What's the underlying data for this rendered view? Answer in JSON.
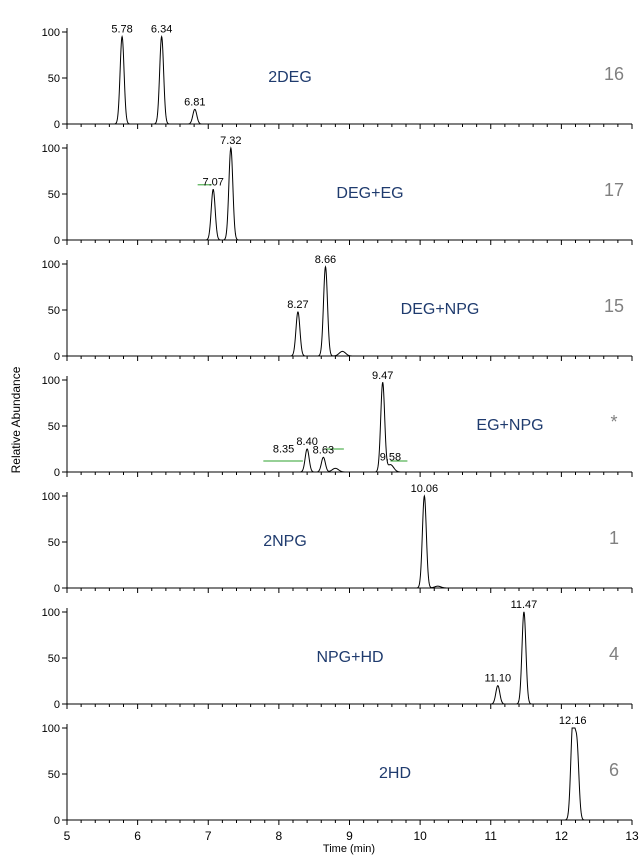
{
  "chart_data": {
    "type": "line",
    "xlabel": "Time (min)",
    "ylabel": "Relative Abundance",
    "xlim": [
      5,
      13
    ],
    "ylim": [
      0,
      100
    ],
    "x_ticks": [
      "5",
      "6",
      "7",
      "8",
      "9",
      "10",
      "11",
      "12",
      "13"
    ],
    "y_ticks": [
      "0",
      "50",
      "100"
    ],
    "grid": false,
    "colors": {
      "trace": "#000000",
      "compound_label": "#1f3b6e",
      "sample_number": "#808080",
      "baseline_marker": "#2ca02c"
    },
    "panels": [
      {
        "compound": "2DEG",
        "number": "16",
        "peaks": [
          {
            "rt": 5.78,
            "height": 95,
            "label": "5.78"
          },
          {
            "rt": 6.34,
            "height": 95,
            "label": "6.34"
          },
          {
            "rt": 6.81,
            "height": 16,
            "label": "6.81"
          }
        ],
        "markers": []
      },
      {
        "compound": "DEG+EG",
        "number": "17",
        "peaks": [
          {
            "rt": 7.07,
            "height": 55,
            "label": "7.07"
          },
          {
            "rt": 7.32,
            "height": 100,
            "label": "7.32"
          }
        ],
        "markers": [
          {
            "x1": 6.85,
            "x2": 7.05,
            "y": 60
          }
        ]
      },
      {
        "compound": "DEG+NPG",
        "number": "15",
        "peaks": [
          {
            "rt": 8.27,
            "height": 48,
            "label": "8.27"
          },
          {
            "rt": 8.66,
            "height": 97,
            "label": "8.66"
          },
          {
            "rt": 8.9,
            "height": 5,
            "label": ""
          }
        ],
        "markers": []
      },
      {
        "compound": "EG+NPG",
        "number": "*",
        "peaks": [
          {
            "rt": 8.4,
            "height": 25,
            "label": "8.40"
          },
          {
            "rt": 8.63,
            "height": 16,
            "label": "8.63"
          },
          {
            "rt": 8.8,
            "height": 4,
            "label": ""
          },
          {
            "rt": 9.47,
            "height": 97,
            "label": "9.47"
          },
          {
            "rt": 9.58,
            "height": 8,
            "label": "9.58"
          }
        ],
        "markers": [
          {
            "x1": 7.78,
            "x2": 8.34,
            "y": 12
          },
          {
            "x1": 8.64,
            "x2": 8.92,
            "y": 25
          },
          {
            "x1": 9.58,
            "x2": 9.82,
            "y": 12
          }
        ],
        "extra_labels": [
          {
            "rt": 8.35,
            "y": 18,
            "label": "8.35"
          }
        ]
      },
      {
        "compound": "2NPG",
        "number": "1",
        "peaks": [
          {
            "rt": 10.06,
            "height": 100,
            "label": "10.06"
          },
          {
            "rt": 10.25,
            "height": 2,
            "label": ""
          }
        ],
        "markers": []
      },
      {
        "compound": "NPG+HD",
        "number": "4",
        "peaks": [
          {
            "rt": 11.1,
            "height": 20,
            "label": "11.10"
          },
          {
            "rt": 11.47,
            "height": 100,
            "label": "11.47"
          }
        ],
        "markers": []
      },
      {
        "compound": "2HD",
        "number": "6",
        "peaks": [
          {
            "rt": 12.16,
            "height": 100,
            "label": "12.16"
          },
          {
            "rt": 12.22,
            "height": 80,
            "label": ""
          }
        ],
        "markers": []
      }
    ]
  }
}
